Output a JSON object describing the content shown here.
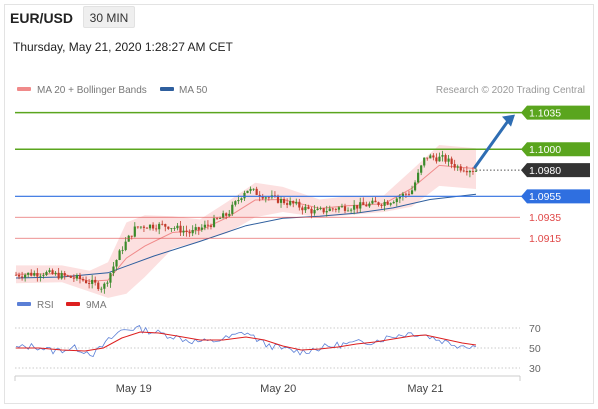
{
  "header": {
    "symbol": "EUR/USD",
    "timeframe": "30 MIN",
    "datetime": "Thursday, May 21, 2020 1:28:27 AM CET"
  },
  "legend": {
    "main": [
      {
        "label": "MA 20 + Bollinger Bands",
        "color": "#f08a8a"
      },
      {
        "label": "MA 50",
        "color": "#2f5f9e"
      }
    ],
    "credit": "Research © 2020 Trading Central",
    "rsi": [
      {
        "label": "RSI",
        "color": "#5b7fd6"
      },
      {
        "label": "9MA",
        "color": "#dd1f1f"
      }
    ]
  },
  "colors": {
    "resistance": "#5aa51e",
    "pivot": "#2f6fe0",
    "support": "#e04848",
    "last": "#333333",
    "candle_up": "#3a8a2a",
    "candle_down": "#c23a2a",
    "band_fill": "#fbdada",
    "arrow": "#2e6db3"
  },
  "chart_data": [
    {
      "type": "candlestick",
      "name": "price",
      "ylim": [
        1.0856,
        1.1047
      ],
      "x_ticks": [
        {
          "label": "May 19",
          "t": 0.256
        },
        {
          "label": "May 20",
          "t": 0.57
        },
        {
          "label": "May 21",
          "t": 0.89
        }
      ],
      "levels": [
        {
          "value": 1.1035,
          "label": "1.1035",
          "kind": "resistance"
        },
        {
          "value": 1.1,
          "label": "1.1000",
          "kind": "resistance"
        },
        {
          "value": 1.098,
          "label": "1.0980",
          "kind": "last"
        },
        {
          "value": 1.0955,
          "label": "1.0955",
          "kind": "pivot"
        },
        {
          "value": 1.0935,
          "label": "1.0935",
          "kind": "support"
        },
        {
          "value": 1.0915,
          "label": "1.0915",
          "kind": "support"
        }
      ],
      "target_value": 1.1035,
      "close_path": [
        [
          0.0,
          1.088
        ],
        [
          0.06,
          1.0882
        ],
        [
          0.14,
          1.0876
        ],
        [
          0.19,
          1.0868
        ],
        [
          0.23,
          1.0905
        ],
        [
          0.26,
          1.0925
        ],
        [
          0.28,
          1.0927
        ],
        [
          0.33,
          1.0927
        ],
        [
          0.38,
          1.092
        ],
        [
          0.42,
          1.0928
        ],
        [
          0.46,
          1.0938
        ],
        [
          0.5,
          1.0962
        ],
        [
          0.55,
          1.0954
        ],
        [
          0.6,
          1.0948
        ],
        [
          0.65,
          1.094
        ],
        [
          0.7,
          1.0944
        ],
        [
          0.75,
          1.0946
        ],
        [
          0.81,
          1.095
        ],
        [
          0.86,
          1.096
        ],
        [
          0.89,
          1.0993
        ],
        [
          0.93,
          1.0991
        ],
        [
          0.96,
          1.0983
        ],
        [
          1.0,
          1.098
        ]
      ],
      "ma50": [
        [
          0.0,
          1.0877
        ],
        [
          0.1,
          1.0878
        ],
        [
          0.2,
          1.0882
        ],
        [
          0.3,
          1.0898
        ],
        [
          0.4,
          1.0912
        ],
        [
          0.5,
          1.0927
        ],
        [
          0.58,
          1.0934
        ],
        [
          0.66,
          1.0936
        ],
        [
          0.74,
          1.0939
        ],
        [
          0.82,
          1.0944
        ],
        [
          0.9,
          1.0952
        ],
        [
          1.0,
          1.0957
        ]
      ],
      "bollinger_upper": [
        [
          0.0,
          1.0889
        ],
        [
          0.1,
          1.0889
        ],
        [
          0.16,
          1.0884
        ],
        [
          0.2,
          1.0892
        ],
        [
          0.24,
          1.093
        ],
        [
          0.28,
          1.0937
        ],
        [
          0.34,
          1.0936
        ],
        [
          0.4,
          1.0933
        ],
        [
          0.46,
          1.095
        ],
        [
          0.52,
          1.0968
        ],
        [
          0.58,
          1.0964
        ],
        [
          0.66,
          1.0952
        ],
        [
          0.72,
          1.0955
        ],
        [
          0.8,
          1.0956
        ],
        [
          0.86,
          1.098
        ],
        [
          0.92,
          1.1004
        ],
        [
          1.0,
          1.1001
        ]
      ],
      "bollinger_lower": [
        [
          0.0,
          1.0872
        ],
        [
          0.1,
          1.0873
        ],
        [
          0.16,
          1.0864
        ],
        [
          0.2,
          1.0858
        ],
        [
          0.24,
          1.0862
        ],
        [
          0.28,
          1.0878
        ],
        [
          0.34,
          1.0905
        ],
        [
          0.4,
          1.0912
        ],
        [
          0.46,
          1.092
        ],
        [
          0.52,
          1.0935
        ],
        [
          0.58,
          1.094
        ],
        [
          0.66,
          1.0935
        ],
        [
          0.72,
          1.0937
        ],
        [
          0.8,
          1.094
        ],
        [
          0.86,
          1.0945
        ],
        [
          0.92,
          1.0965
        ],
        [
          1.0,
          1.0962
        ]
      ]
    },
    {
      "type": "line",
      "name": "rsi",
      "ylim": [
        22,
        80
      ],
      "tick_values": [
        70,
        50,
        30
      ],
      "rsi": [
        [
          0.0,
          50
        ],
        [
          0.04,
          52
        ],
        [
          0.08,
          47
        ],
        [
          0.13,
          50
        ],
        [
          0.17,
          44
        ],
        [
          0.2,
          57
        ],
        [
          0.23,
          68
        ],
        [
          0.26,
          70
        ],
        [
          0.3,
          66
        ],
        [
          0.34,
          62
        ],
        [
          0.38,
          57
        ],
        [
          0.42,
          56
        ],
        [
          0.46,
          60
        ],
        [
          0.5,
          66
        ],
        [
          0.54,
          54
        ],
        [
          0.58,
          49
        ],
        [
          0.62,
          46
        ],
        [
          0.66,
          50
        ],
        [
          0.7,
          53
        ],
        [
          0.74,
          55
        ],
        [
          0.78,
          57
        ],
        [
          0.82,
          62
        ],
        [
          0.86,
          65
        ],
        [
          0.89,
          63
        ],
        [
          0.92,
          58
        ],
        [
          0.96,
          53
        ],
        [
          1.0,
          52
        ]
      ],
      "rsi_9ma": [
        [
          0.0,
          50
        ],
        [
          0.05,
          50
        ],
        [
          0.1,
          48
        ],
        [
          0.15,
          47
        ],
        [
          0.19,
          50
        ],
        [
          0.23,
          60
        ],
        [
          0.27,
          66
        ],
        [
          0.31,
          65
        ],
        [
          0.35,
          62
        ],
        [
          0.4,
          58
        ],
        [
          0.45,
          58
        ],
        [
          0.5,
          61
        ],
        [
          0.54,
          58
        ],
        [
          0.58,
          52
        ],
        [
          0.62,
          48
        ],
        [
          0.66,
          49
        ],
        [
          0.7,
          51
        ],
        [
          0.74,
          54
        ],
        [
          0.78,
          56
        ],
        [
          0.82,
          59
        ],
        [
          0.86,
          62
        ],
        [
          0.89,
          63
        ],
        [
          0.93,
          59
        ],
        [
          0.97,
          55
        ],
        [
          1.0,
          53
        ]
      ]
    }
  ]
}
